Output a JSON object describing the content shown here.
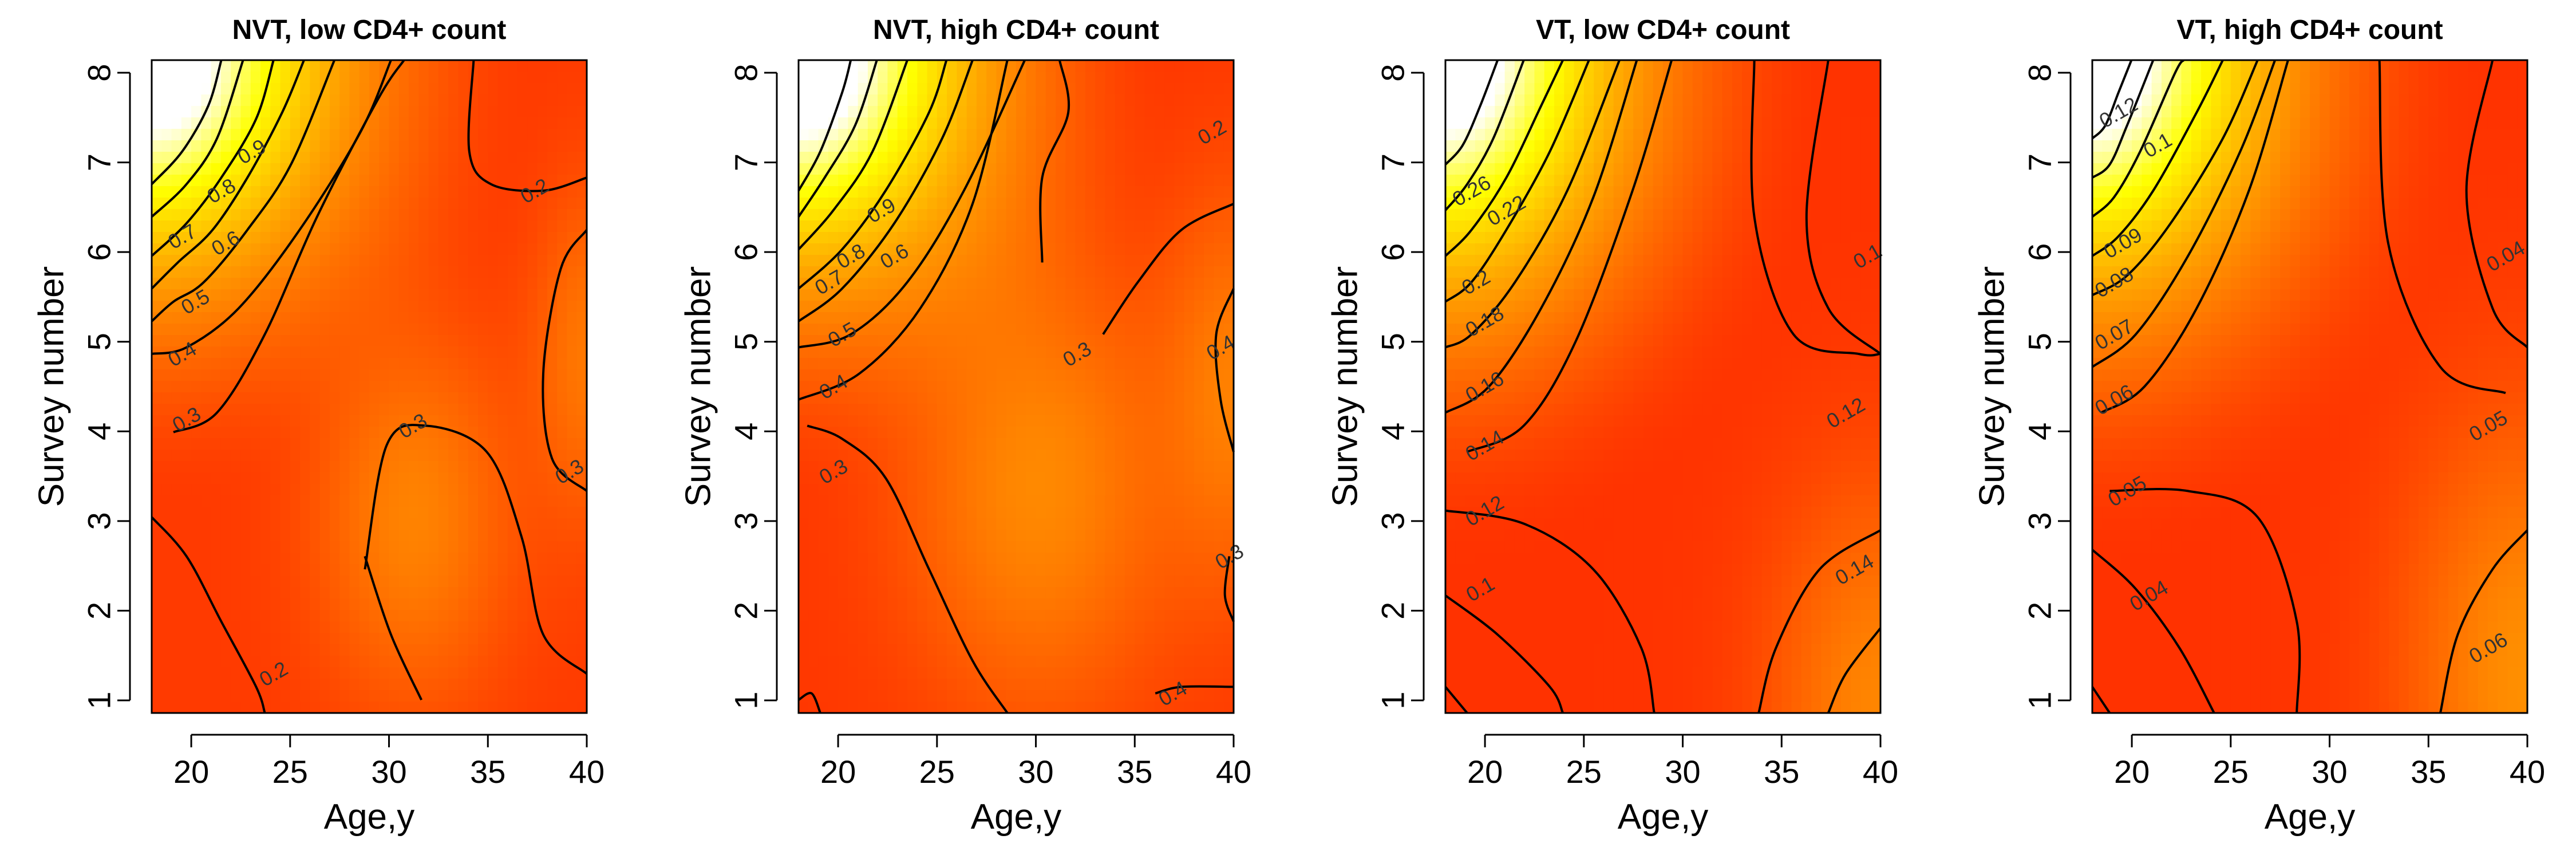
{
  "chart_data": [
    {
      "type": "heatmap",
      "title": "NVT, low CD4+ count",
      "xlabel": "Age,y",
      "ylabel": "Survey number",
      "xlim": [
        18,
        40
      ],
      "ylim": [
        1,
        8
      ],
      "xticks": [
        20,
        25,
        30,
        35,
        40
      ],
      "yticks": [
        1,
        2,
        3,
        4,
        5,
        6,
        7,
        8
      ],
      "colorscale": [
        "#ff0000",
        "#ff5a00",
        "#ffa800",
        "#ffff00",
        "#ffffff"
      ],
      "contour_levels": [
        0.2,
        0.3,
        0.4,
        0.5,
        0.6,
        0.7,
        0.8,
        0.9
      ],
      "contour_labels": [
        "0.9",
        "0.8",
        "0.7",
        "0.6",
        "0.5",
        "0.4",
        "0.3",
        "0.3",
        "0.3",
        "0.2",
        "0.2"
      ]
    },
    {
      "type": "heatmap",
      "title": "NVT, high CD4+ count",
      "xlabel": "Age,y",
      "ylabel": "Survey number",
      "xlim": [
        18,
        40
      ],
      "ylim": [
        1,
        8
      ],
      "xticks": [
        20,
        25,
        30,
        35,
        40
      ],
      "yticks": [
        1,
        2,
        3,
        4,
        5,
        6,
        7,
        8
      ],
      "colorscale": [
        "#ff0000",
        "#ff5a00",
        "#ffa800",
        "#ffff00",
        "#ffffff"
      ],
      "contour_levels": [
        0.2,
        0.3,
        0.4,
        0.5,
        0.6,
        0.7,
        0.8,
        0.9
      ],
      "contour_labels": [
        "0.9",
        "0.8",
        "0.7",
        "0.6",
        "0.5",
        "0.4",
        "0.3",
        "0.3",
        "0.2",
        "0.4",
        "0.3",
        "0.4"
      ]
    },
    {
      "type": "heatmap",
      "title": "VT, low CD4+ count",
      "xlabel": "Age,y",
      "ylabel": "Survey number",
      "xlim": [
        18,
        40
      ],
      "ylim": [
        1,
        8
      ],
      "xticks": [
        20,
        25,
        30,
        35,
        40
      ],
      "yticks": [
        1,
        2,
        3,
        4,
        5,
        6,
        7,
        8
      ],
      "colorscale": [
        "#ff0000",
        "#ff5a00",
        "#ffa800",
        "#ffff00",
        "#ffffff"
      ],
      "contour_levels": [
        0.1,
        0.12,
        0.14,
        0.16,
        0.18,
        0.2,
        0.22,
        0.24,
        0.26
      ],
      "contour_labels": [
        "0.26",
        "0.22",
        "0.2",
        "0.18",
        "0.16",
        "0.14",
        "0.12",
        "0.1",
        "0.1",
        "0.12",
        "0.14"
      ]
    },
    {
      "type": "heatmap",
      "title": "VT, high CD4+ count",
      "xlabel": "Age,y",
      "ylabel": "Survey number",
      "xlim": [
        18,
        40
      ],
      "ylim": [
        1,
        8
      ],
      "xticks": [
        20,
        25,
        30,
        35,
        40
      ],
      "yticks": [
        1,
        2,
        3,
        4,
        5,
        6,
        7,
        8
      ],
      "colorscale": [
        "#ff0000",
        "#ff5a00",
        "#ffa800",
        "#ffff00",
        "#ffffff"
      ],
      "contour_levels": [
        0.04,
        0.05,
        0.06,
        0.07,
        0.08,
        0.09,
        0.1,
        0.11,
        0.12
      ],
      "contour_labels": [
        "0.12",
        "0.1",
        "0.09",
        "0.08",
        "0.07",
        "0.06",
        "0.05",
        "0.04",
        "0.04",
        "0.05",
        "0.06"
      ]
    }
  ]
}
